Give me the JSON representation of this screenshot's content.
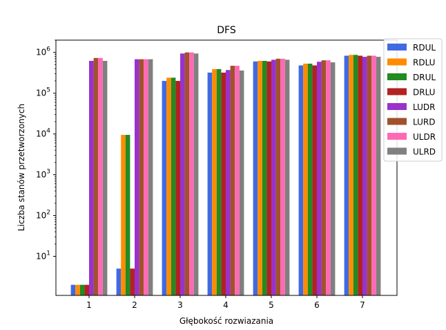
{
  "chart_data": {
    "type": "bar",
    "title": "DFS",
    "xlabel": "Głębokość rozwiazania",
    "ylabel": "Liczba stanów przetworzonych",
    "y_scale": "log",
    "ylim": [
      1.1,
      2000000
    ],
    "y_ticks": [
      {
        "value": 10,
        "label_base": "10",
        "label_exp": "1"
      },
      {
        "value": 100,
        "label_base": "10",
        "label_exp": "2"
      },
      {
        "value": 1000,
        "label_base": "10",
        "label_exp": "3"
      },
      {
        "value": 10000,
        "label_base": "10",
        "label_exp": "4"
      },
      {
        "value": 100000,
        "label_base": "10",
        "label_exp": "5"
      },
      {
        "value": 1000000,
        "label_base": "10",
        "label_exp": "6"
      }
    ],
    "categories": [
      "1",
      "2",
      "3",
      "4",
      "5",
      "6",
      "7"
    ],
    "grid": false,
    "legend_position": "upper-right-outside",
    "series": [
      {
        "name": "RDUL",
        "color": "#4169e1",
        "values": [
          2,
          5,
          200000,
          320000,
          600000,
          480000,
          830000
        ]
      },
      {
        "name": "RDLU",
        "color": "#ff8c00",
        "values": [
          2,
          9500,
          240000,
          390000,
          620000,
          530000,
          870000
        ]
      },
      {
        "name": "DRUL",
        "color": "#228b22",
        "values": [
          2,
          9500,
          240000,
          390000,
          620000,
          530000,
          870000
        ]
      },
      {
        "name": "DRLU",
        "color": "#b22222",
        "values": [
          2,
          5,
          200000,
          320000,
          600000,
          480000,
          830000
        ]
      },
      {
        "name": "LUDR",
        "color": "#9932cc",
        "values": [
          620000,
          680000,
          940000,
          370000,
          660000,
          590000,
          780000
        ]
      },
      {
        "name": "LURD",
        "color": "#a0522d",
        "values": [
          730000,
          680000,
          1000000,
          470000,
          700000,
          640000,
          830000
        ]
      },
      {
        "name": "ULDR",
        "color": "#ff69b4",
        "values": [
          730000,
          680000,
          1000000,
          470000,
          700000,
          640000,
          830000
        ]
      },
      {
        "name": "ULRD",
        "color": "#808080",
        "values": [
          620000,
          680000,
          940000,
          360000,
          660000,
          570000,
          780000
        ]
      }
    ]
  }
}
